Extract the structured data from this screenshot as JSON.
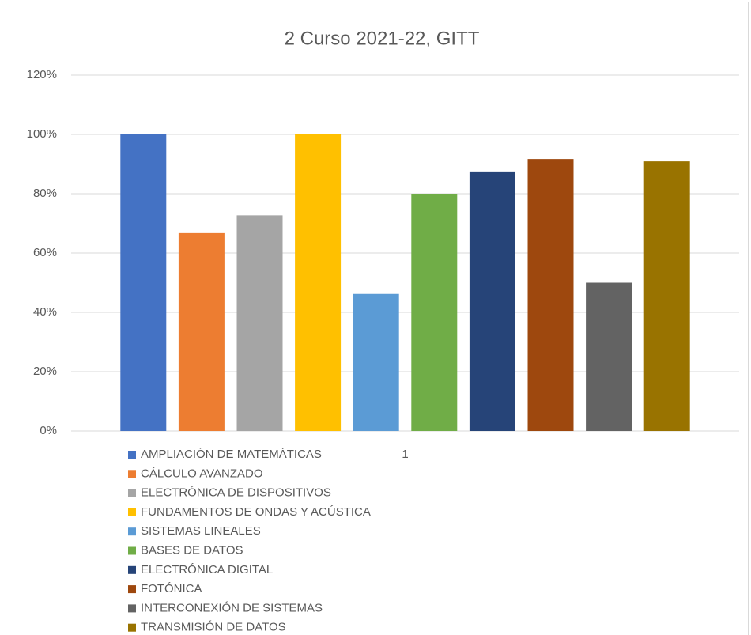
{
  "chart_data": {
    "type": "bar",
    "title": "2 Curso 2021-22, GITT",
    "categories": [
      "1"
    ],
    "series": [
      {
        "name": "AMPLIACIÓN DE MATEMÁTICAS",
        "color": "#4472c4",
        "values": [
          100
        ]
      },
      {
        "name": "CÁLCULO AVANZADO",
        "color": "#ed7d31",
        "values": [
          66.7
        ]
      },
      {
        "name": "ELECTRÓNICA DE DISPOSITIVOS",
        "color": "#a5a5a5",
        "values": [
          72.7
        ]
      },
      {
        "name": "FUNDAMENTOS DE ONDAS Y ACÚSTICA",
        "color": "#ffc000",
        "values": [
          100
        ]
      },
      {
        "name": "SISTEMAS LINEALES",
        "color": "#5b9bd5",
        "values": [
          46.2
        ]
      },
      {
        "name": "BASES DE DATOS",
        "color": "#70ad47",
        "values": [
          80
        ]
      },
      {
        "name": "ELECTRÓNICA DIGITAL",
        "color": "#264478",
        "values": [
          87.5
        ]
      },
      {
        "name": "FOTÓNICA",
        "color": "#9e480e",
        "values": [
          91.7
        ]
      },
      {
        "name": "INTERCONEXIÓN DE SISTEMAS",
        "color": "#636363",
        "values": [
          50
        ]
      },
      {
        "name": "TRANSMISIÓN DE DATOS",
        "color": "#997300",
        "values": [
          90.9
        ]
      }
    ],
    "ylim": [
      0,
      120
    ],
    "yticks": [
      {
        "value": 0,
        "label": "0%"
      },
      {
        "value": 20,
        "label": "20%"
      },
      {
        "value": 40,
        "label": "40%"
      },
      {
        "value": 60,
        "label": "60%"
      },
      {
        "value": 80,
        "label": "80%"
      },
      {
        "value": 100,
        "label": "100%"
      },
      {
        "value": 120,
        "label": "120%"
      }
    ],
    "grid": true,
    "legend": "bottom"
  }
}
